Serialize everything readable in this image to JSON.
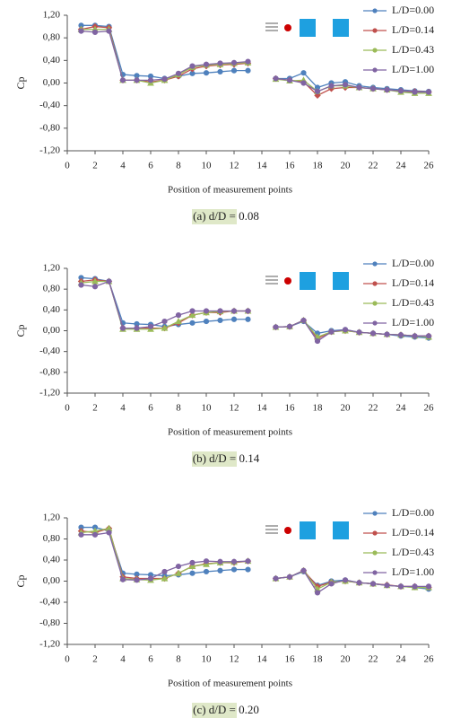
{
  "chart_data": [
    {
      "type": "line",
      "caption": "(a) d/D = 0.08",
      "y_label": "Cp",
      "x_label": "Position of measurement points",
      "x": [
        1,
        2,
        3,
        4,
        5,
        6,
        7,
        8,
        9,
        10,
        11,
        12,
        13,
        14,
        15,
        16,
        17,
        18,
        19,
        20,
        21,
        22,
        23,
        24,
        25,
        26
      ],
      "xlim": [
        0,
        26
      ],
      "ylim": [
        -1.2,
        1.2
      ],
      "xticks": [
        0,
        2,
        4,
        6,
        8,
        10,
        12,
        14,
        16,
        18,
        20,
        22,
        24,
        26
      ],
      "yticks": [
        {
          "value": 1.2,
          "label": "1,20"
        },
        {
          "value": 0.8,
          "label": "0,80"
        },
        {
          "value": 0.4,
          "label": "0,40"
        },
        {
          "value": 0,
          "label": "0,00"
        },
        {
          "value": -0.4,
          "label": "-0,40"
        },
        {
          "value": -0.8,
          "label": "-0,80"
        },
        {
          "value": -1.2,
          "label": "-1,20"
        }
      ],
      "legend": "upper right",
      "series": [
        {
          "name": "L/D=0.00",
          "color": "#4f81bd",
          "values": [
            1.02,
            1.02,
            1.0,
            0.15,
            0.13,
            0.12,
            0.08,
            0.12,
            0.17,
            0.18,
            0.2,
            0.22,
            0.22,
            null,
            0.08,
            0.08,
            0.18,
            -0.08,
            0.0,
            0.02,
            -0.05,
            -0.08,
            -0.1,
            -0.12,
            -0.14,
            -0.15
          ]
        },
        {
          "name": "L/D=0.14",
          "color": "#c0504d",
          "values": [
            0.95,
            1.0,
            0.98,
            0.05,
            0.05,
            0.02,
            0.05,
            0.12,
            0.25,
            0.3,
            0.32,
            0.33,
            0.35,
            null,
            0.08,
            0.05,
            0.02,
            -0.22,
            -0.1,
            -0.08,
            -0.08,
            -0.1,
            -0.12,
            -0.14,
            -0.15,
            -0.16
          ]
        },
        {
          "name": "L/D=0.43",
          "color": "#9bbb59",
          "values": [
            0.95,
            0.95,
            0.95,
            0.05,
            0.05,
            0.0,
            0.05,
            0.15,
            0.28,
            0.32,
            0.33,
            0.35,
            0.36,
            null,
            0.07,
            0.04,
            0.05,
            -0.15,
            -0.05,
            -0.05,
            -0.08,
            -0.1,
            -0.12,
            -0.16,
            -0.18,
            -0.18
          ]
        },
        {
          "name": "L/D=1.00",
          "color": "#8064a2",
          "values": [
            0.92,
            0.9,
            0.92,
            0.05,
            0.05,
            0.05,
            0.07,
            0.17,
            0.3,
            0.33,
            0.35,
            0.36,
            0.38,
            null,
            0.08,
            0.05,
            0.0,
            -0.15,
            -0.05,
            -0.03,
            -0.08,
            -0.1,
            -0.12,
            -0.14,
            -0.16,
            -0.16
          ]
        }
      ]
    },
    {
      "type": "line",
      "caption": "(b) d/D = 0.14",
      "y_label": "Cp",
      "x_label": "Position of measurement points",
      "x": [
        1,
        2,
        3,
        4,
        5,
        6,
        7,
        8,
        9,
        10,
        11,
        12,
        13,
        14,
        15,
        16,
        17,
        18,
        19,
        20,
        21,
        22,
        23,
        24,
        25,
        26
      ],
      "xlim": [
        0,
        26
      ],
      "ylim": [
        -1.2,
        1.2
      ],
      "xticks": [
        0,
        2,
        4,
        6,
        8,
        10,
        12,
        14,
        16,
        18,
        20,
        22,
        24,
        26
      ],
      "yticks": [
        {
          "value": 1.2,
          "label": "1,20"
        },
        {
          "value": 0.8,
          "label": "0,80"
        },
        {
          "value": 0.4,
          "label": "0,40"
        },
        {
          "value": 0,
          "label": "0,00"
        },
        {
          "value": -0.4,
          "label": "-0,40"
        },
        {
          "value": -0.8,
          "label": "-0,80"
        },
        {
          "value": -1.2,
          "label": "-1,20"
        }
      ],
      "legend": "upper right",
      "series": [
        {
          "name": "L/D=0.00",
          "color": "#4f81bd",
          "values": [
            1.02,
            1.0,
            0.95,
            0.15,
            0.13,
            0.12,
            0.08,
            0.12,
            0.15,
            0.18,
            0.2,
            0.22,
            0.22,
            null,
            0.07,
            0.08,
            0.18,
            -0.05,
            0.0,
            0.02,
            -0.03,
            -0.05,
            -0.07,
            -0.1,
            -0.12,
            -0.14
          ]
        },
        {
          "name": "L/D=0.14",
          "color": "#c0504d",
          "values": [
            0.95,
            0.98,
            0.95,
            0.05,
            0.05,
            0.05,
            0.05,
            0.15,
            0.3,
            0.35,
            0.35,
            0.38,
            0.38,
            null,
            0.07,
            0.08,
            0.2,
            -0.15,
            -0.02,
            0.0,
            -0.03,
            -0.05,
            -0.07,
            -0.08,
            -0.1,
            -0.1
          ]
        },
        {
          "name": "L/D=0.43",
          "color": "#9bbb59",
          "values": [
            0.92,
            0.95,
            0.95,
            0.03,
            0.03,
            0.03,
            0.05,
            0.18,
            0.3,
            0.35,
            0.37,
            0.38,
            0.38,
            null,
            0.07,
            0.08,
            0.2,
            -0.12,
            -0.02,
            0.0,
            -0.03,
            -0.05,
            -0.07,
            -0.08,
            -0.1,
            -0.12
          ]
        },
        {
          "name": "L/D=1.00",
          "color": "#8064a2",
          "values": [
            0.88,
            0.85,
            0.95,
            0.05,
            0.05,
            0.08,
            0.18,
            0.3,
            0.38,
            0.38,
            0.38,
            0.38,
            0.38,
            null,
            0.07,
            0.08,
            0.2,
            -0.2,
            -0.02,
            0.02,
            -0.03,
            -0.05,
            -0.07,
            -0.08,
            -0.1,
            -0.1
          ]
        }
      ]
    },
    {
      "type": "line",
      "caption": "(c) d/D = 0.20",
      "y_label": "Cp",
      "x_label": "Position of measurement points",
      "x": [
        1,
        2,
        3,
        4,
        5,
        6,
        7,
        8,
        9,
        10,
        11,
        12,
        13,
        14,
        15,
        16,
        17,
        18,
        19,
        20,
        21,
        22,
        23,
        24,
        25,
        26
      ],
      "xlim": [
        0,
        26
      ],
      "ylim": [
        -1.2,
        1.2
      ],
      "xticks": [
        0,
        2,
        4,
        6,
        8,
        10,
        12,
        14,
        16,
        18,
        20,
        22,
        24,
        26
      ],
      "yticks": [
        {
          "value": 1.2,
          "label": "1,20"
        },
        {
          "value": 0.8,
          "label": "0,80"
        },
        {
          "value": 0.4,
          "label": "0,40"
        },
        {
          "value": 0,
          "label": "0,00"
        },
        {
          "value": -0.4,
          "label": "-0,40"
        },
        {
          "value": -0.8,
          "label": "-0,80"
        },
        {
          "value": -1.2,
          "label": "-1,20"
        }
      ],
      "legend": "upper right",
      "series": [
        {
          "name": "L/D=0.00",
          "color": "#4f81bd",
          "values": [
            1.02,
            1.02,
            0.95,
            0.15,
            0.13,
            0.12,
            0.1,
            0.12,
            0.15,
            0.18,
            0.2,
            0.22,
            0.22,
            null,
            0.05,
            0.08,
            0.18,
            -0.08,
            0.0,
            0.02,
            -0.03,
            -0.05,
            -0.08,
            -0.1,
            -0.12,
            -0.15
          ]
        },
        {
          "name": "L/D=0.14",
          "color": "#c0504d",
          "values": [
            0.95,
            0.92,
            1.0,
            0.08,
            0.05,
            0.05,
            0.05,
            0.15,
            0.28,
            0.33,
            0.35,
            0.35,
            0.38,
            null,
            0.05,
            0.08,
            0.2,
            -0.1,
            -0.02,
            0.0,
            -0.03,
            -0.05,
            -0.07,
            -0.1,
            -0.1,
            -0.12
          ]
        },
        {
          "name": "L/D=0.43",
          "color": "#9bbb59",
          "values": [
            0.92,
            0.95,
            1.0,
            0.05,
            0.03,
            0.02,
            0.05,
            0.15,
            0.28,
            0.32,
            0.35,
            0.36,
            0.38,
            null,
            0.05,
            0.08,
            0.2,
            -0.15,
            -0.02,
            0.0,
            -0.03,
            -0.05,
            -0.08,
            -0.1,
            -0.12,
            -0.12
          ]
        },
        {
          "name": "L/D=1.00",
          "color": "#8064a2",
          "values": [
            0.88,
            0.88,
            0.92,
            0.03,
            0.02,
            0.05,
            0.18,
            0.28,
            0.35,
            0.38,
            0.37,
            0.37,
            0.38,
            null,
            0.05,
            0.08,
            0.2,
            -0.22,
            -0.05,
            0.02,
            -0.03,
            -0.05,
            -0.08,
            -0.1,
            -0.1,
            -0.1
          ]
        }
      ]
    }
  ]
}
